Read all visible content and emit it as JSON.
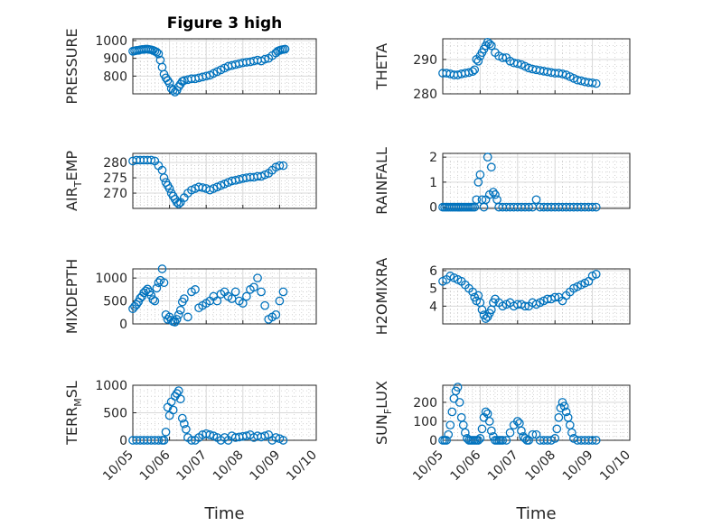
{
  "chart_data": [
    {
      "type": "scatter",
      "title": "Figure 3 high",
      "ylabel": "PRESSURE",
      "xlabel": "",
      "xlim": [
        0,
        5
      ],
      "x_tick_labels": [
        "10/05",
        "10/06",
        "10/07",
        "10/08",
        "10/09",
        "10/10"
      ],
      "ylim": [
        700,
        1010
      ],
      "y_ticks": [
        800,
        900,
        1000
      ],
      "grid": true,
      "color": "#0072BD",
      "series": [
        {
          "x": [
            0,
            0.05,
            0.1,
            0.15,
            0.2,
            0.25,
            0.3,
            0.35,
            0.4,
            0.45,
            0.5,
            0.55,
            0.6,
            0.65,
            0.7,
            0.75,
            0.8,
            0.85,
            0.9,
            0.95,
            1.0,
            1.05,
            1.1,
            1.15,
            1.2,
            1.25,
            1.3,
            1.35,
            1.4,
            1.5,
            1.6,
            1.7,
            1.8,
            1.9,
            2.0,
            2.1,
            2.2,
            2.3,
            2.4,
            2.5,
            2.6,
            2.7,
            2.8,
            2.9,
            3.0,
            3.1,
            3.2,
            3.3,
            3.4,
            3.5,
            3.6,
            3.7,
            3.8,
            3.9,
            3.95,
            4.0,
            4.05,
            4.1,
            4.15
          ],
          "y": [
            940,
            942,
            945,
            945,
            948,
            950,
            950,
            952,
            952,
            950,
            948,
            945,
            940,
            935,
            925,
            890,
            850,
            810,
            790,
            775,
            760,
            730,
            720,
            710,
            720,
            740,
            755,
            770,
            775,
            780,
            785,
            785,
            790,
            795,
            800,
            805,
            815,
            825,
            835,
            845,
            855,
            860,
            865,
            870,
            875,
            878,
            880,
            885,
            890,
            885,
            895,
            900,
            915,
            930,
            940,
            945,
            948,
            950,
            952
          ]
        }
      ]
    },
    {
      "type": "scatter",
      "title": "",
      "ylabel": "THETA",
      "xlabel": "",
      "xlim": [
        0,
        5
      ],
      "x_tick_labels": [
        "10/05",
        "10/06",
        "10/07",
        "10/08",
        "10/09",
        "10/10"
      ],
      "ylim": [
        280,
        296
      ],
      "y_ticks": [
        280,
        290
      ],
      "grid": true,
      "color": "#0072BD",
      "series": [
        {
          "x": [
            0,
            0.1,
            0.2,
            0.3,
            0.4,
            0.5,
            0.6,
            0.7,
            0.8,
            0.85,
            0.9,
            0.95,
            1.0,
            1.05,
            1.1,
            1.15,
            1.2,
            1.25,
            1.3,
            1.4,
            1.5,
            1.6,
            1.7,
            1.8,
            1.9,
            2.0,
            2.1,
            2.2,
            2.3,
            2.4,
            2.5,
            2.6,
            2.7,
            2.8,
            2.9,
            3.0,
            3.1,
            3.2,
            3.3,
            3.4,
            3.5,
            3.6,
            3.7,
            3.8,
            3.9,
            4.0,
            4.1
          ],
          "y": [
            286,
            286,
            285.8,
            285.5,
            285.5,
            285.8,
            286,
            286.2,
            286.5,
            287,
            290,
            289.5,
            291,
            292,
            293,
            294,
            295,
            294.5,
            294,
            292,
            291,
            290.5,
            290.5,
            289.5,
            289,
            288.8,
            288.5,
            288,
            287.5,
            287.2,
            287,
            286.8,
            286.6,
            286.4,
            286.2,
            286,
            286,
            285.8,
            285.5,
            285,
            284.5,
            284,
            283.8,
            283.5,
            283.3,
            283.2,
            283
          ]
        }
      ]
    },
    {
      "type": "scatter",
      "title": "",
      "ylabel": "AIR_TEMP",
      "xlabel": "",
      "xlim": [
        0,
        5
      ],
      "x_tick_labels": [
        "10/05",
        "10/06",
        "10/07",
        "10/08",
        "10/09",
        "10/10"
      ],
      "ylim": [
        265,
        283
      ],
      "y_ticks": [
        270,
        275,
        280
      ],
      "grid": true,
      "color": "#0072BD",
      "series": [
        {
          "x": [
            0,
            0.1,
            0.2,
            0.3,
            0.4,
            0.5,
            0.6,
            0.7,
            0.8,
            0.85,
            0.9,
            0.95,
            1.0,
            1.05,
            1.1,
            1.15,
            1.2,
            1.25,
            1.3,
            1.4,
            1.5,
            1.6,
            1.7,
            1.8,
            1.9,
            2.0,
            2.1,
            2.2,
            2.3,
            2.4,
            2.5,
            2.6,
            2.7,
            2.8,
            2.9,
            3.0,
            3.1,
            3.2,
            3.3,
            3.4,
            3.5,
            3.6,
            3.7,
            3.8,
            3.9,
            4.0,
            4.1
          ],
          "y": [
            280.5,
            280.8,
            280.8,
            280.8,
            280.8,
            280.8,
            280.5,
            279,
            277.5,
            275,
            273.5,
            272.5,
            271.5,
            270,
            269,
            268,
            267,
            266.5,
            267,
            268.5,
            270,
            271,
            271.5,
            272,
            271.8,
            271.5,
            271,
            271.5,
            272,
            272.5,
            273,
            273.5,
            274,
            274.2,
            274.5,
            274.8,
            275,
            275.2,
            275.2,
            275.5,
            275.5,
            276,
            276.5,
            277.5,
            278.5,
            279,
            279
          ]
        }
      ]
    },
    {
      "type": "scatter",
      "title": "",
      "ylabel": "RAINFALL",
      "xlabel": "",
      "xlim": [
        0,
        5
      ],
      "x_tick_labels": [
        "10/05",
        "10/06",
        "10/07",
        "10/08",
        "10/09",
        "10/10"
      ],
      "ylim": [
        -0.05,
        2.15
      ],
      "y_ticks": [
        0,
        1,
        2
      ],
      "grid": true,
      "color": "#0072BD",
      "series": [
        {
          "x": [
            0,
            0.05,
            0.1,
            0.15,
            0.2,
            0.25,
            0.3,
            0.35,
            0.4,
            0.45,
            0.5,
            0.55,
            0.6,
            0.65,
            0.7,
            0.75,
            0.8,
            0.85,
            0.9,
            0.95,
            1.0,
            1.05,
            1.1,
            1.15,
            1.2,
            1.25,
            1.3,
            1.35,
            1.4,
            1.45,
            1.5,
            1.6,
            1.7,
            1.8,
            1.9,
            2.0,
            2.1,
            2.2,
            2.3,
            2.4,
            2.5,
            2.6,
            2.7,
            2.8,
            2.9,
            3.0,
            3.1,
            3.2,
            3.3,
            3.4,
            3.5,
            3.6,
            3.7,
            3.8,
            3.9,
            4.0,
            4.1
          ],
          "y": [
            0,
            0,
            0,
            0,
            0,
            0,
            0,
            0,
            0,
            0,
            0,
            0,
            0,
            0,
            0,
            0,
            0,
            0,
            0.3,
            1.0,
            1.3,
            0.3,
            0,
            0.3,
            2.0,
            0.5,
            1.6,
            0.6,
            0.5,
            0.3,
            0,
            0,
            0,
            0,
            0,
            0,
            0,
            0,
            0,
            0,
            0.3,
            0,
            0,
            0,
            0,
            0,
            0,
            0,
            0,
            0,
            0,
            0,
            0,
            0,
            0,
            0,
            0
          ]
        }
      ]
    },
    {
      "type": "scatter",
      "title": "",
      "ylabel": "MIXDEPTH",
      "xlabel": "",
      "xlim": [
        0,
        5
      ],
      "x_tick_labels": [
        "10/05",
        "10/06",
        "10/07",
        "10/08",
        "10/09",
        "10/10"
      ],
      "ylim": [
        0,
        1200
      ],
      "y_ticks": [
        0,
        500,
        1000
      ],
      "grid": true,
      "color": "#0072BD",
      "series": [
        {
          "x": [
            0,
            0.05,
            0.1,
            0.15,
            0.2,
            0.25,
            0.3,
            0.35,
            0.4,
            0.45,
            0.5,
            0.55,
            0.6,
            0.65,
            0.7,
            0.75,
            0.8,
            0.85,
            0.9,
            0.95,
            1.0,
            1.05,
            1.1,
            1.15,
            1.2,
            1.25,
            1.3,
            1.35,
            1.4,
            1.5,
            1.6,
            1.7,
            1.8,
            1.9,
            2.0,
            2.1,
            2.2,
            2.3,
            2.4,
            2.5,
            2.6,
            2.7,
            2.8,
            2.9,
            3.0,
            3.1,
            3.2,
            3.3,
            3.4,
            3.5,
            3.6,
            3.7,
            3.8,
            3.9,
            4.0,
            4.1
          ],
          "y": [
            330,
            380,
            420,
            480,
            560,
            600,
            680,
            720,
            760,
            700,
            620,
            530,
            500,
            780,
            900,
            950,
            1200,
            900,
            200,
            100,
            150,
            80,
            50,
            40,
            100,
            200,
            300,
            480,
            550,
            150,
            700,
            750,
            350,
            400,
            450,
            500,
            600,
            500,
            650,
            700,
            600,
            550,
            700,
            500,
            450,
            600,
            750,
            800,
            1000,
            700,
            400,
            100,
            150,
            200,
            500,
            700
          ]
        }
      ]
    },
    {
      "type": "scatter",
      "title": "",
      "ylabel": "H2OMIXRA",
      "xlabel": "",
      "xlim": [
        0,
        5
      ],
      "x_tick_labels": [
        "10/05",
        "10/06",
        "10/07",
        "10/08",
        "10/09",
        "10/10"
      ],
      "ylim": [
        3,
        6.1
      ],
      "y_ticks": [
        4,
        5,
        6
      ],
      "grid": true,
      "color": "#0072BD",
      "series": [
        {
          "x": [
            0,
            0.1,
            0.2,
            0.3,
            0.4,
            0.5,
            0.6,
            0.7,
            0.8,
            0.85,
            0.9,
            0.95,
            1.0,
            1.05,
            1.1,
            1.15,
            1.2,
            1.25,
            1.3,
            1.35,
            1.4,
            1.5,
            1.6,
            1.7,
            1.8,
            1.9,
            2.0,
            2.1,
            2.2,
            2.3,
            2.4,
            2.5,
            2.6,
            2.7,
            2.8,
            2.9,
            3.0,
            3.1,
            3.2,
            3.3,
            3.4,
            3.5,
            3.6,
            3.7,
            3.8,
            3.9,
            4.0,
            4.1
          ],
          "y": [
            5.4,
            5.5,
            5.7,
            5.6,
            5.5,
            5.4,
            5.2,
            5.0,
            4.8,
            4.5,
            4.3,
            4.6,
            4.2,
            3.8,
            3.5,
            3.3,
            3.4,
            3.6,
            3.8,
            4.2,
            4.4,
            4.2,
            4.0,
            4.1,
            4.2,
            4.0,
            4.1,
            4.1,
            4.0,
            4.0,
            4.2,
            4.1,
            4.2,
            4.3,
            4.4,
            4.4,
            4.5,
            4.5,
            4.3,
            4.6,
            4.8,
            5.0,
            5.1,
            5.2,
            5.3,
            5.4,
            5.7,
            5.8
          ]
        }
      ]
    },
    {
      "type": "scatter",
      "title": "",
      "ylabel": "TERR_MSL",
      "xlabel": "Time",
      "xlim": [
        0,
        5
      ],
      "x_tick_labels": [
        "10/05",
        "10/06",
        "10/07",
        "10/08",
        "10/09",
        "10/10"
      ],
      "ylim": [
        0,
        1000
      ],
      "y_ticks": [
        0,
        500,
        1000
      ],
      "grid": true,
      "color": "#0072BD",
      "series": [
        {
          "x": [
            0,
            0.1,
            0.2,
            0.3,
            0.4,
            0.5,
            0.6,
            0.7,
            0.8,
            0.85,
            0.9,
            0.95,
            1.0,
            1.05,
            1.1,
            1.15,
            1.2,
            1.25,
            1.3,
            1.35,
            1.4,
            1.45,
            1.5,
            1.6,
            1.7,
            1.8,
            1.9,
            2.0,
            2.1,
            2.2,
            2.3,
            2.4,
            2.5,
            2.6,
            2.7,
            2.8,
            2.9,
            3.0,
            3.1,
            3.2,
            3.3,
            3.4,
            3.5,
            3.6,
            3.7,
            3.8,
            3.9,
            4.0,
            4.1
          ],
          "y": [
            0,
            0,
            0,
            0,
            0,
            0,
            0,
            0,
            0,
            0,
            150,
            600,
            450,
            700,
            550,
            800,
            850,
            900,
            750,
            400,
            300,
            200,
            50,
            0,
            0,
            50,
            100,
            120,
            100,
            80,
            50,
            0,
            50,
            0,
            80,
            50,
            60,
            70,
            80,
            100,
            50,
            80,
            60,
            80,
            100,
            0,
            50,
            30,
            0
          ]
        }
      ]
    },
    {
      "type": "scatter",
      "title": "",
      "ylabel": "SUN_FLUX",
      "xlabel": "Time",
      "xlim": [
        0,
        5
      ],
      "x_tick_labels": [
        "10/05",
        "10/06",
        "10/07",
        "10/08",
        "10/09",
        "10/10"
      ],
      "ylim": [
        0,
        290
      ],
      "y_ticks": [
        0,
        100,
        200
      ],
      "grid": true,
      "color": "#0072BD",
      "series": [
        {
          "x": [
            0,
            0.05,
            0.1,
            0.15,
            0.2,
            0.25,
            0.3,
            0.35,
            0.4,
            0.45,
            0.5,
            0.55,
            0.6,
            0.65,
            0.7,
            0.75,
            0.8,
            0.85,
            0.9,
            0.95,
            1.0,
            1.05,
            1.1,
            1.15,
            1.2,
            1.25,
            1.3,
            1.35,
            1.4,
            1.45,
            1.5,
            1.55,
            1.6,
            1.7,
            1.8,
            1.9,
            2.0,
            2.05,
            2.1,
            2.15,
            2.2,
            2.25,
            2.3,
            2.4,
            2.5,
            2.6,
            2.7,
            2.8,
            2.9,
            3.0,
            3.05,
            3.1,
            3.15,
            3.2,
            3.25,
            3.3,
            3.35,
            3.4,
            3.45,
            3.5,
            3.6,
            3.7,
            3.8,
            3.9,
            4.0,
            4.1
          ],
          "y": [
            0,
            0,
            0,
            30,
            80,
            150,
            220,
            260,
            280,
            200,
            120,
            80,
            40,
            10,
            0,
            0,
            0,
            0,
            0,
            0,
            10,
            60,
            120,
            150,
            140,
            100,
            50,
            20,
            0,
            0,
            0,
            0,
            0,
            0,
            40,
            80,
            100,
            90,
            50,
            20,
            10,
            0,
            0,
            30,
            30,
            0,
            0,
            0,
            0,
            10,
            60,
            120,
            170,
            200,
            180,
            150,
            120,
            80,
            40,
            10,
            0,
            0,
            0,
            0,
            0,
            0
          ]
        }
      ]
    }
  ]
}
